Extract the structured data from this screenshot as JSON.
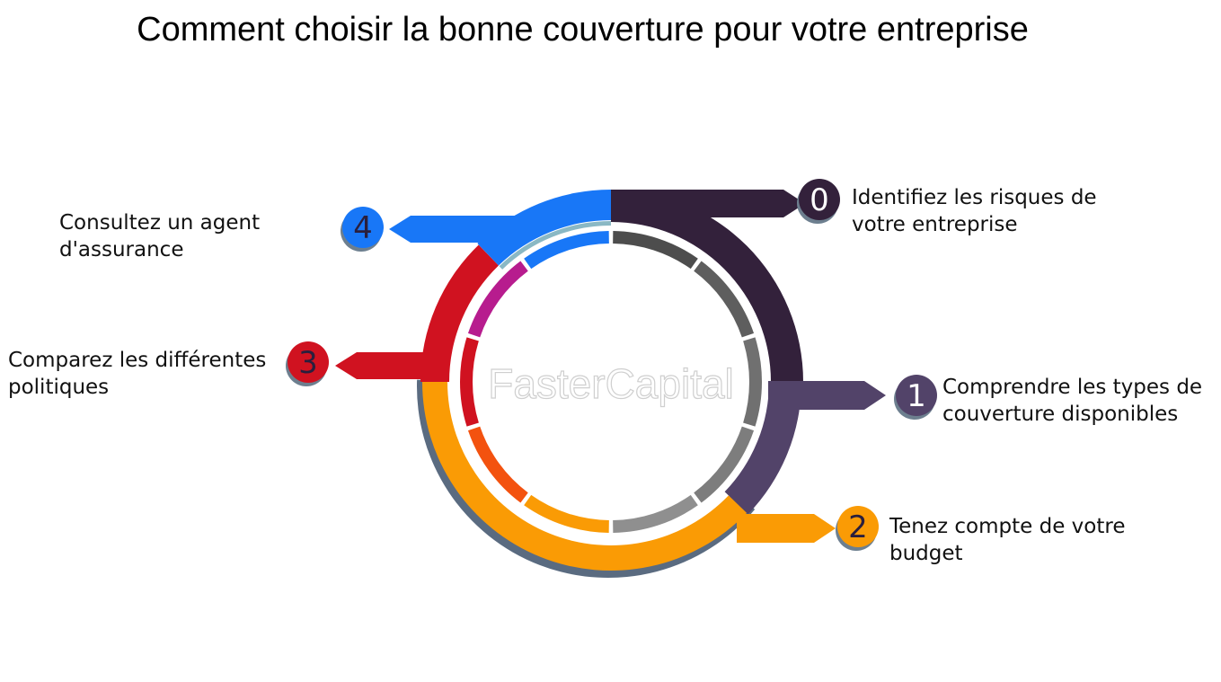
{
  "title": "Comment choisir la bonne couverture pour votre entreprise",
  "watermark": "FasterCapital",
  "steps": [
    {
      "number": "0",
      "lines": [
        "Identifiez les risques de",
        "votre entreprise"
      ],
      "color": "#33213b"
    },
    {
      "number": "1",
      "lines": [
        "Comprendre les types de",
        "couverture disponibles"
      ],
      "color": "#524369"
    },
    {
      "number": "2",
      "lines": [
        "Tenez compte de votre",
        "budget"
      ],
      "color": "#fa9b05"
    },
    {
      "number": "3",
      "lines": [
        "Comparez les différentes",
        "politiques"
      ],
      "color": "#d01220"
    },
    {
      "number": "4",
      "lines": [
        "Consultez un agent",
        "d'assurance"
      ],
      "color": "#1877f7"
    }
  ],
  "inner_ring_colors": [
    "#4d4d4d",
    "#5e5e5e",
    "#707070",
    "#7d7d7d",
    "#8f8f8f",
    "#fa9b05",
    "#f3520f",
    "#d01220",
    "#b71c8e",
    "#1877f7"
  ]
}
